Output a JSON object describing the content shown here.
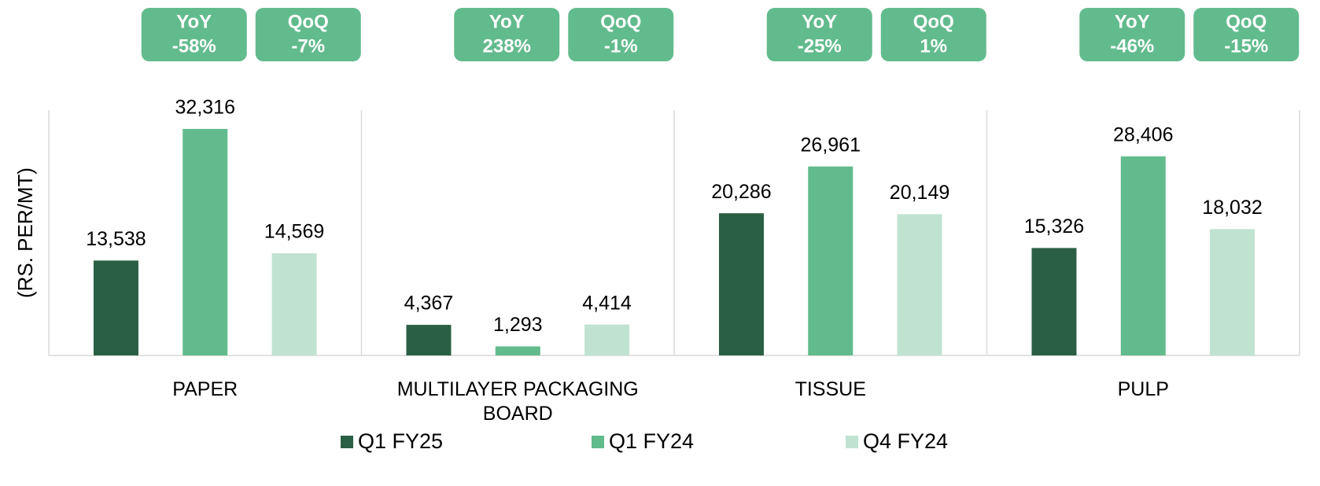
{
  "chart_data": {
    "type": "bar",
    "y_label": "(RS. PER/MT)",
    "categories": [
      "PAPER",
      "MULTILAYER PACKAGING BOARD",
      "TISSUE",
      "PULP"
    ],
    "series": [
      {
        "name": "Q1 FY25",
        "color": "#2b5f45",
        "values": [
          13538,
          4367,
          20286,
          15326
        ],
        "value_labels": [
          "13,538",
          "4,367",
          "20,286",
          "15,326"
        ]
      },
      {
        "name": "Q1 FY24",
        "color": "#62bb8c",
        "values": [
          32316,
          1293,
          26961,
          28406
        ],
        "value_labels": [
          "32,316",
          "1,293",
          "26,961",
          "28,406"
        ]
      },
      {
        "name": "Q4 FY24",
        "color": "#c0e3d1",
        "values": [
          14569,
          4414,
          20149,
          18032
        ],
        "value_labels": [
          "14,569",
          "4,414",
          "20,149",
          "18,032"
        ]
      }
    ],
    "badges": [
      [
        {
          "label": "YoY",
          "text": "-58%"
        },
        {
          "label": "QoQ",
          "text": "-7%"
        }
      ],
      [
        {
          "label": "YoY",
          "text": "238%"
        },
        {
          "label": "QoQ",
          "text": "-1%"
        }
      ],
      [
        {
          "label": "YoY",
          "text": "-25%"
        },
        {
          "label": "QoQ",
          "text": "1%"
        }
      ],
      [
        {
          "label": "YoY",
          "text": "-46%"
        },
        {
          "label": "QoQ",
          "text": "-15%"
        }
      ]
    ],
    "badge_color": "#62bb8c",
    "ylim": [
      0,
      35000
    ],
    "legend": "bottom"
  }
}
